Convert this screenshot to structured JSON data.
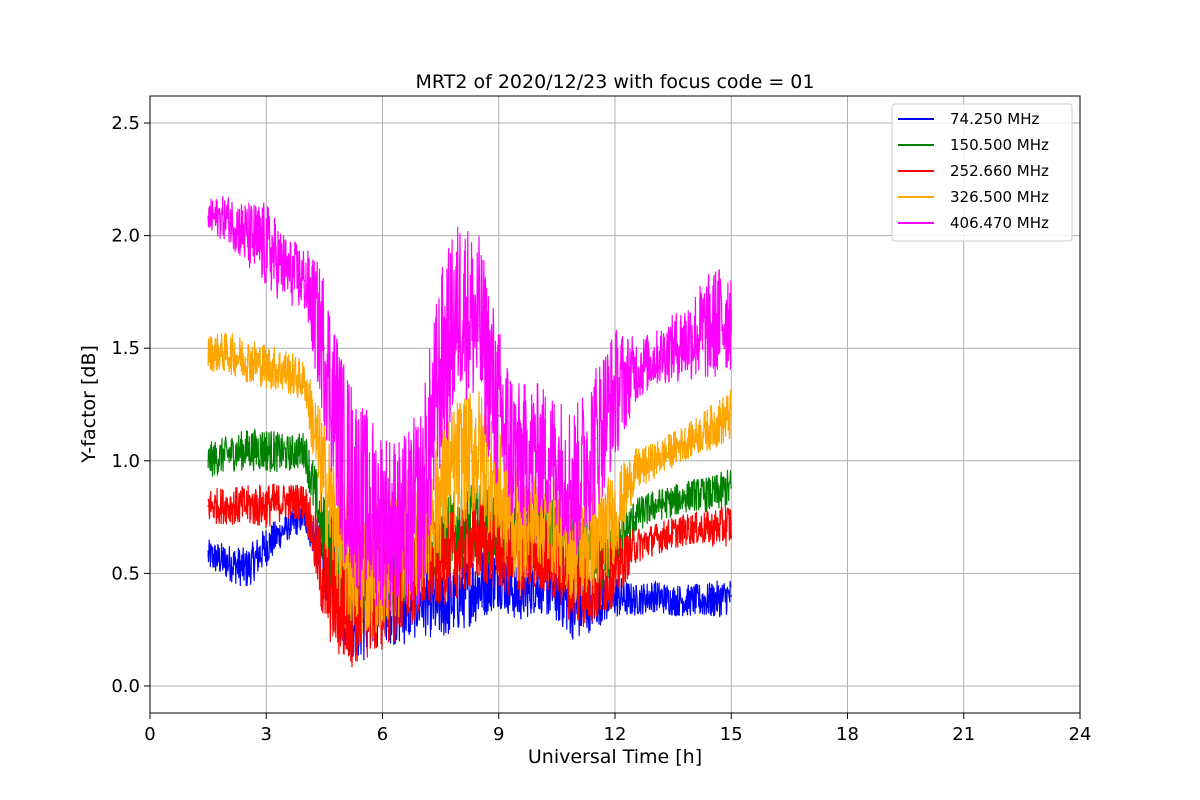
{
  "chart_data": {
    "type": "line",
    "title": "MRT2 of 2020/12/23 with focus code = 01",
    "xlabel": "Universal Time [h]",
    "ylabel": "Y-factor [dB]",
    "xlim": [
      0,
      24
    ],
    "ylim": [
      -0.12,
      2.62
    ],
    "xticks": [
      0,
      3,
      6,
      9,
      12,
      15,
      18,
      21,
      24
    ],
    "xtick_labels": [
      "0",
      "3",
      "6",
      "9",
      "12",
      "15",
      "18",
      "21",
      "24"
    ],
    "yticks": [
      0.0,
      0.5,
      1.0,
      1.5,
      2.0,
      2.5
    ],
    "ytick_labels": [
      "0.0",
      "0.5",
      "1.0",
      "1.5",
      "2.0",
      "2.5"
    ],
    "grid": true,
    "legend_position": "top-right",
    "series": [
      {
        "name": " 74.250 MHz",
        "color": "#0000ff",
        "x": [
          1.5,
          2.0,
          2.5,
          3.0,
          3.5,
          4.0,
          4.5,
          5.0,
          5.5,
          6.0,
          6.5,
          7.0,
          7.5,
          8.0,
          8.5,
          9.0,
          9.5,
          10.0,
          10.5,
          11.0,
          11.5,
          12.0,
          12.5,
          13.0,
          13.5,
          14.0,
          14.5,
          15.0
        ],
        "y": [
          0.58,
          0.55,
          0.52,
          0.62,
          0.7,
          0.75,
          0.55,
          0.35,
          0.3,
          0.4,
          0.35,
          0.38,
          0.35,
          0.4,
          0.45,
          0.48,
          0.4,
          0.45,
          0.42,
          0.35,
          0.38,
          0.4,
          0.38,
          0.4,
          0.38,
          0.38,
          0.38,
          0.4
        ],
        "spread": [
          0.07,
          0.08,
          0.09,
          0.09,
          0.06,
          0.06,
          0.15,
          0.2,
          0.2,
          0.2,
          0.18,
          0.15,
          0.15,
          0.16,
          0.16,
          0.13,
          0.12,
          0.12,
          0.14,
          0.16,
          0.12,
          0.1,
          0.07,
          0.07,
          0.07,
          0.07,
          0.08,
          0.08
        ]
      },
      {
        "name": "150.500 MHz",
        "color": "#008000",
        "x": [
          1.5,
          2.0,
          2.5,
          3.0,
          3.5,
          4.0,
          4.5,
          5.0,
          5.5,
          6.0,
          6.5,
          7.0,
          7.5,
          8.0,
          8.5,
          9.0,
          9.5,
          10.0,
          10.5,
          11.0,
          11.5,
          12.0,
          12.5,
          13.0,
          13.5,
          14.0,
          14.5,
          15.0
        ],
        "y": [
          1.0,
          1.03,
          1.05,
          1.05,
          1.03,
          1.05,
          0.65,
          0.5,
          0.45,
          0.5,
          0.55,
          0.6,
          0.65,
          0.7,
          0.72,
          0.7,
          0.65,
          0.7,
          0.68,
          0.6,
          0.55,
          0.6,
          0.75,
          0.8,
          0.82,
          0.85,
          0.85,
          0.88
        ],
        "spread": [
          0.08,
          0.08,
          0.09,
          0.1,
          0.08,
          0.08,
          0.2,
          0.25,
          0.25,
          0.22,
          0.2,
          0.18,
          0.18,
          0.18,
          0.18,
          0.15,
          0.15,
          0.15,
          0.15,
          0.18,
          0.15,
          0.12,
          0.08,
          0.07,
          0.07,
          0.07,
          0.08,
          0.09
        ]
      },
      {
        "name": "252.660 MHz",
        "color": "#ff0000",
        "x": [
          1.5,
          2.0,
          2.5,
          3.0,
          3.5,
          4.0,
          4.5,
          5.0,
          5.5,
          6.0,
          6.5,
          7.0,
          7.5,
          8.0,
          8.5,
          9.0,
          9.5,
          10.0,
          10.5,
          11.0,
          11.5,
          12.0,
          12.5,
          13.0,
          13.5,
          14.0,
          14.5,
          15.0
        ],
        "y": [
          0.8,
          0.8,
          0.8,
          0.8,
          0.82,
          0.82,
          0.45,
          0.35,
          0.35,
          0.4,
          0.45,
          0.5,
          0.55,
          0.6,
          0.65,
          0.6,
          0.55,
          0.6,
          0.55,
          0.45,
          0.45,
          0.5,
          0.62,
          0.65,
          0.68,
          0.7,
          0.7,
          0.72
        ],
        "spread": [
          0.08,
          0.08,
          0.09,
          0.1,
          0.08,
          0.08,
          0.22,
          0.28,
          0.25,
          0.25,
          0.22,
          0.2,
          0.2,
          0.2,
          0.2,
          0.18,
          0.18,
          0.17,
          0.18,
          0.2,
          0.18,
          0.14,
          0.08,
          0.07,
          0.07,
          0.07,
          0.08,
          0.1
        ]
      },
      {
        "name": "326.500 MHz",
        "color": "#ffa500",
        "x": [
          1.5,
          2.0,
          2.5,
          3.0,
          3.5,
          4.0,
          4.5,
          5.0,
          5.5,
          6.0,
          6.5,
          7.0,
          7.5,
          8.0,
          8.5,
          9.0,
          9.5,
          10.0,
          10.5,
          11.0,
          11.5,
          12.0,
          12.5,
          13.0,
          13.5,
          14.0,
          14.5,
          15.0
        ],
        "y": [
          1.48,
          1.48,
          1.45,
          1.42,
          1.4,
          1.35,
          0.9,
          0.6,
          0.5,
          0.55,
          0.6,
          0.7,
          0.85,
          1.0,
          1.05,
          0.85,
          0.7,
          0.75,
          0.7,
          0.6,
          0.65,
          0.75,
          0.95,
          1.0,
          1.05,
          1.1,
          1.15,
          1.2
        ],
        "spread": [
          0.08,
          0.09,
          0.1,
          0.1,
          0.1,
          0.09,
          0.28,
          0.32,
          0.3,
          0.3,
          0.3,
          0.28,
          0.3,
          0.3,
          0.28,
          0.28,
          0.25,
          0.22,
          0.22,
          0.25,
          0.25,
          0.2,
          0.1,
          0.08,
          0.08,
          0.08,
          0.1,
          0.12
        ]
      },
      {
        "name": "406.470 MHz",
        "color": "#ff00ff",
        "x": [
          1.5,
          2.0,
          2.5,
          3.0,
          3.5,
          4.0,
          4.5,
          5.0,
          5.5,
          6.0,
          6.5,
          7.0,
          7.5,
          8.0,
          8.5,
          9.0,
          9.5,
          10.0,
          10.5,
          11.0,
          11.5,
          12.0,
          12.5,
          13.0,
          13.5,
          14.0,
          14.5,
          15.0
        ],
        "y": [
          2.08,
          2.08,
          2.0,
          1.95,
          1.85,
          1.8,
          1.5,
          1.0,
          0.8,
          0.75,
          0.7,
          0.8,
          1.4,
          1.7,
          1.6,
          1.2,
          1.0,
          1.05,
          1.0,
          0.9,
          1.1,
          1.3,
          1.4,
          1.45,
          1.5,
          1.55,
          1.6,
          1.65
        ],
        "spread": [
          0.08,
          0.1,
          0.15,
          0.2,
          0.15,
          0.15,
          0.35,
          0.45,
          0.45,
          0.4,
          0.4,
          0.45,
          0.45,
          0.4,
          0.4,
          0.4,
          0.35,
          0.3,
          0.3,
          0.35,
          0.35,
          0.3,
          0.15,
          0.12,
          0.15,
          0.2,
          0.25,
          0.25
        ]
      }
    ]
  }
}
